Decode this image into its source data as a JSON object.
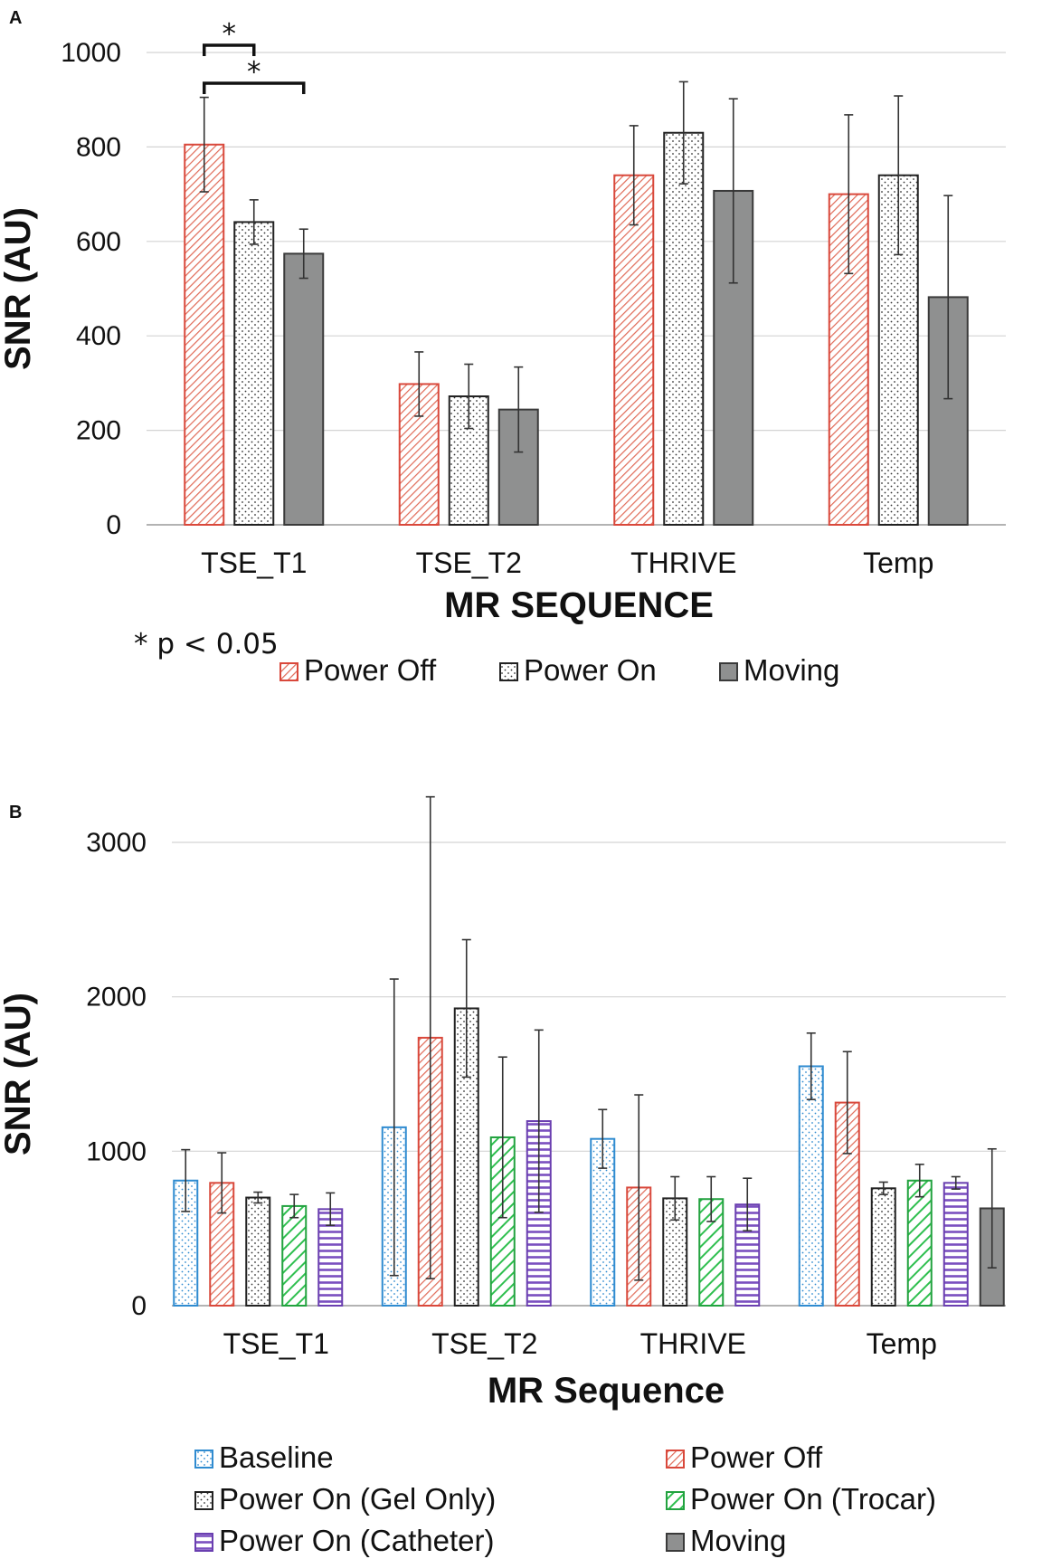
{
  "chart_data": [
    {
      "panel": "A",
      "type": "bar",
      "xlabel": "MR SEQUENCE",
      "ylabel": "SNR (AU)",
      "ylim": [
        0,
        1000
      ],
      "yticks": [
        0,
        200,
        400,
        600,
        800,
        1000
      ],
      "grid": true,
      "categories": [
        "TSE_T1",
        "TSE_T2",
        "THRIVE",
        "Temp"
      ],
      "series": [
        {
          "name": "Power Off",
          "style": "diag-red",
          "values": [
            805,
            298,
            740,
            700
          ],
          "errors": [
            100,
            68,
            105,
            168
          ]
        },
        {
          "name": "Power On",
          "style": "dots-black",
          "values": [
            641,
            272,
            830,
            740
          ],
          "errors": [
            47,
            68,
            108,
            168
          ]
        },
        {
          "name": "Moving",
          "style": "solid-gray",
          "values": [
            574,
            244,
            707,
            482
          ],
          "errors": [
            52,
            90,
            195,
            215
          ]
        }
      ],
      "significance": [
        {
          "label": "*",
          "from_series": 0,
          "to_series": 1,
          "category": 0
        },
        {
          "label": "*",
          "from_series": 0,
          "to_series": 2,
          "category": 0
        }
      ],
      "note": "* p < 0.05",
      "legend_position": "bottom"
    },
    {
      "panel": "B",
      "type": "bar",
      "xlabel": "MR Sequence",
      "ylabel": "SNR (AU)",
      "ylim": [
        0,
        3000
      ],
      "yticks": [
        0,
        1000,
        2000,
        3000
      ],
      "grid": true,
      "categories": [
        "TSE_T1",
        "TSE_T2",
        "THRIVE",
        "Temp"
      ],
      "series": [
        {
          "name": "Baseline",
          "style": "dots-blue",
          "values": [
            810,
            1155,
            1080,
            1550
          ],
          "errors": [
            200,
            960,
            190,
            215
          ]
        },
        {
          "name": "Power Off",
          "style": "diag-red",
          "values": [
            795,
            1735,
            765,
            1315
          ],
          "errors": [
            195,
            1560,
            600,
            330
          ]
        },
        {
          "name": "Power On (Gel Only)",
          "style": "dots-black",
          "values": [
            700,
            1925,
            695,
            760
          ],
          "errors": [
            35,
            445,
            140,
            40
          ]
        },
        {
          "name": "Power On (Trocar)",
          "style": "diag-green",
          "values": [
            645,
            1090,
            690,
            810
          ],
          "errors": [
            75,
            520,
            145,
            105
          ]
        },
        {
          "name": "Power On (Catheter)",
          "style": "hstripe-purple",
          "values": [
            625,
            1195,
            655,
            795
          ],
          "errors": [
            105,
            590,
            170,
            40
          ]
        },
        {
          "name": "Moving",
          "style": "solid-gray",
          "values": [
            null,
            null,
            null,
            630
          ],
          "errors": [
            null,
            null,
            null,
            385
          ]
        }
      ],
      "legend_position": "bottom"
    }
  ]
}
